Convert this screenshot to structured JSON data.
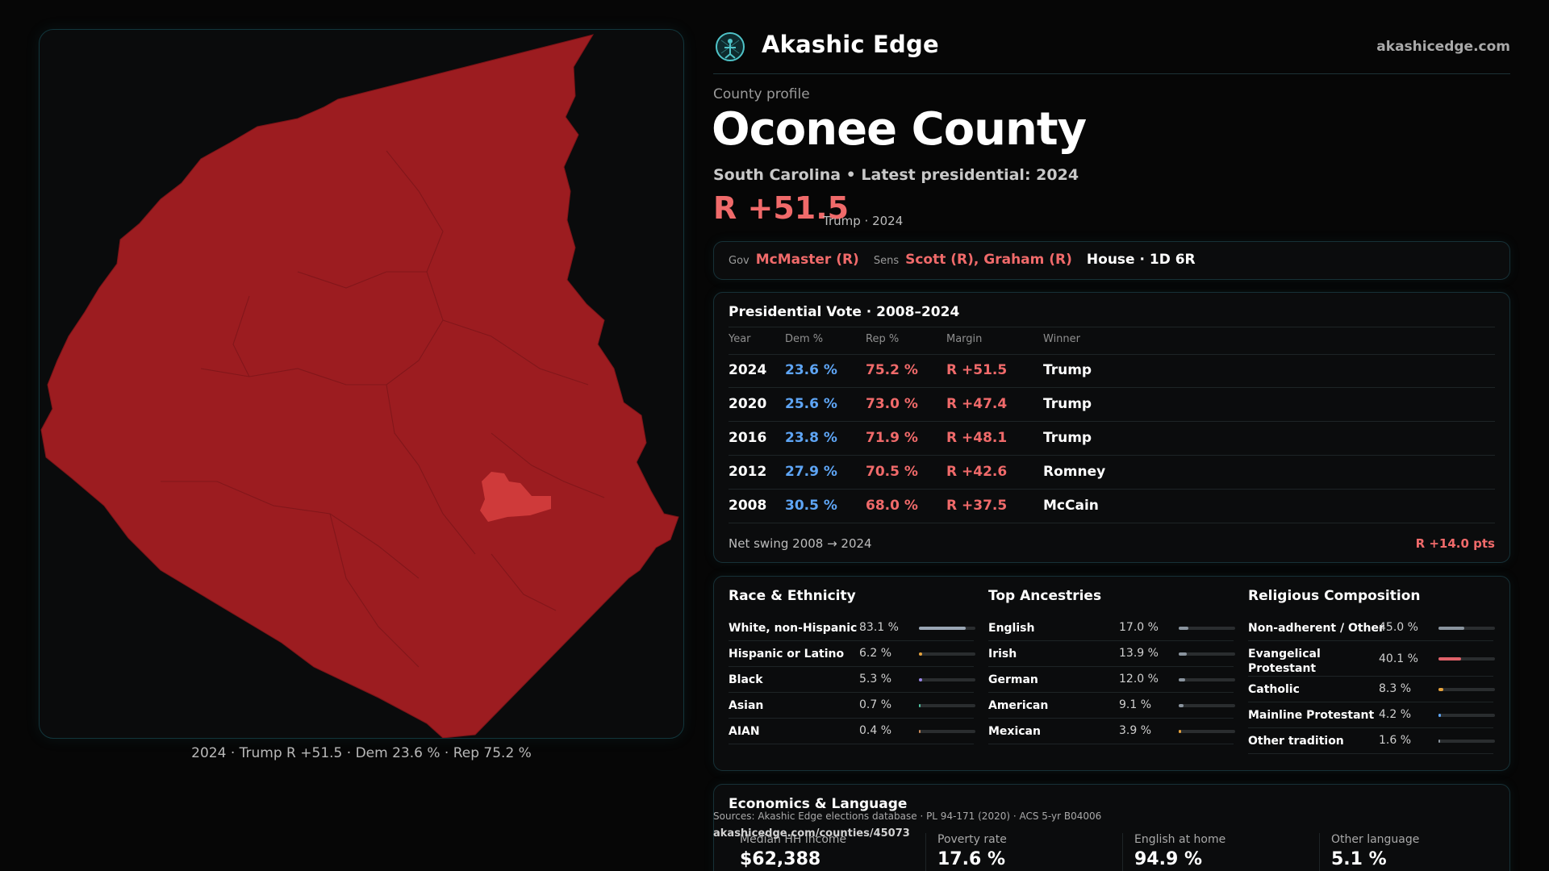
{
  "brand": {
    "name": "Akashic Edge",
    "url": "akashicedge.com",
    "accent": "#4fc3c8"
  },
  "profile": {
    "eyebrow": "County profile",
    "title": "Oconee County",
    "subtitle": "South Carolina • Latest presidential: 2024",
    "headline_margin": "R +51.5",
    "headline_note": "Trump · 2024",
    "rep_color": "#f06a6a",
    "dem_color": "#5ea5f5"
  },
  "officials": {
    "gov_label": "Gov",
    "gov_value": "McMaster (R)",
    "sens_label": "Sens",
    "sens_value": "Scott (R), Graham (R)",
    "house_value": "House · 1D 6R"
  },
  "presidential": {
    "title": "Presidential Vote · 2008–2024",
    "headers": {
      "year": "Year",
      "dem": "Dem %",
      "rep": "Rep %",
      "margin": "Margin",
      "winner": "Winner"
    },
    "rows": [
      {
        "year": "2024",
        "dem": "23.6 %",
        "rep": "75.2 %",
        "margin": "R +51.5",
        "winner": "Trump"
      },
      {
        "year": "2020",
        "dem": "25.6 %",
        "rep": "73.0 %",
        "margin": "R +47.4",
        "winner": "Trump"
      },
      {
        "year": "2016",
        "dem": "23.8 %",
        "rep": "71.9 %",
        "margin": "R +48.1",
        "winner": "Trump"
      },
      {
        "year": "2012",
        "dem": "27.9 %",
        "rep": "70.5 %",
        "margin": "R +42.6",
        "winner": "Romney"
      },
      {
        "year": "2008",
        "dem": "30.5 %",
        "rep": "68.0 %",
        "margin": "R +37.5",
        "winner": "McCain"
      }
    ],
    "swing_label": "Net swing 2008 → 2024",
    "swing_value": "R +14.0 pts"
  },
  "race": {
    "title": "Race & Ethnicity",
    "items": [
      {
        "name": "White, non-Hispanic",
        "pct": "83.1 %",
        "value": 83.1,
        "color": "#9aa6b4"
      },
      {
        "name": "Hispanic or Latino",
        "pct": "6.2 %",
        "value": 6.2,
        "color": "#e6a23c"
      },
      {
        "name": "Black",
        "pct": "5.3 %",
        "value": 5.3,
        "color": "#9a86e8"
      },
      {
        "name": "Asian",
        "pct": "0.7 %",
        "value": 0.7,
        "color": "#4fc3a1"
      },
      {
        "name": "AIAN",
        "pct": "0.4 %",
        "value": 0.4,
        "color": "#c98a5a"
      }
    ]
  },
  "ancestry": {
    "title": "Top Ancestries",
    "items": [
      {
        "name": "English",
        "pct": "17.0 %",
        "value": 17.0,
        "color": "#8a949e"
      },
      {
        "name": "Irish",
        "pct": "13.9 %",
        "value": 13.9,
        "color": "#8a949e"
      },
      {
        "name": "German",
        "pct": "12.0 %",
        "value": 12.0,
        "color": "#8a949e"
      },
      {
        "name": "American",
        "pct": "9.1 %",
        "value": 9.1,
        "color": "#8a949e"
      },
      {
        "name": "Mexican",
        "pct": "3.9 %",
        "value": 3.9,
        "color": "#e6a23c"
      }
    ]
  },
  "religion": {
    "title": "Religious Composition",
    "items": [
      {
        "name": "Non-adherent / Other",
        "pct": "45.0 %",
        "value": 45.0,
        "color": "#8a949e"
      },
      {
        "name": "Evangelical Protestant",
        "pct": "40.1 %",
        "value": 40.1,
        "color": "#e0626a"
      },
      {
        "name": "Catholic",
        "pct": "8.3 %",
        "value": 8.3,
        "color": "#e6a23c"
      },
      {
        "name": "Mainline Protestant",
        "pct": "4.2 %",
        "value": 4.2,
        "color": "#5ea5f5"
      },
      {
        "name": "Other tradition",
        "pct": "1.6 %",
        "value": 1.6,
        "color": "#8a949e"
      }
    ]
  },
  "economics": {
    "title": "Economics & Language",
    "stats": [
      {
        "label": "Median HH income",
        "value": "$62,388"
      },
      {
        "label": "Poverty rate",
        "value": "17.6 %"
      },
      {
        "label": "English at home",
        "value": "94.9 %"
      },
      {
        "label": "Other language",
        "value": "5.1 %"
      }
    ]
  },
  "footer": {
    "sources": "Sources: Akashic Edge elections database · PL 94-171 (2020) · ACS 5-yr B04006",
    "url": "akashicedge.com/counties/45073"
  },
  "map": {
    "caption": "2024 · Trump R +51.5 · Dem 23.6 % · Rep 75.2 %",
    "county_fill": "#9c1c20",
    "highlight_fill": "#cf3a3a"
  }
}
